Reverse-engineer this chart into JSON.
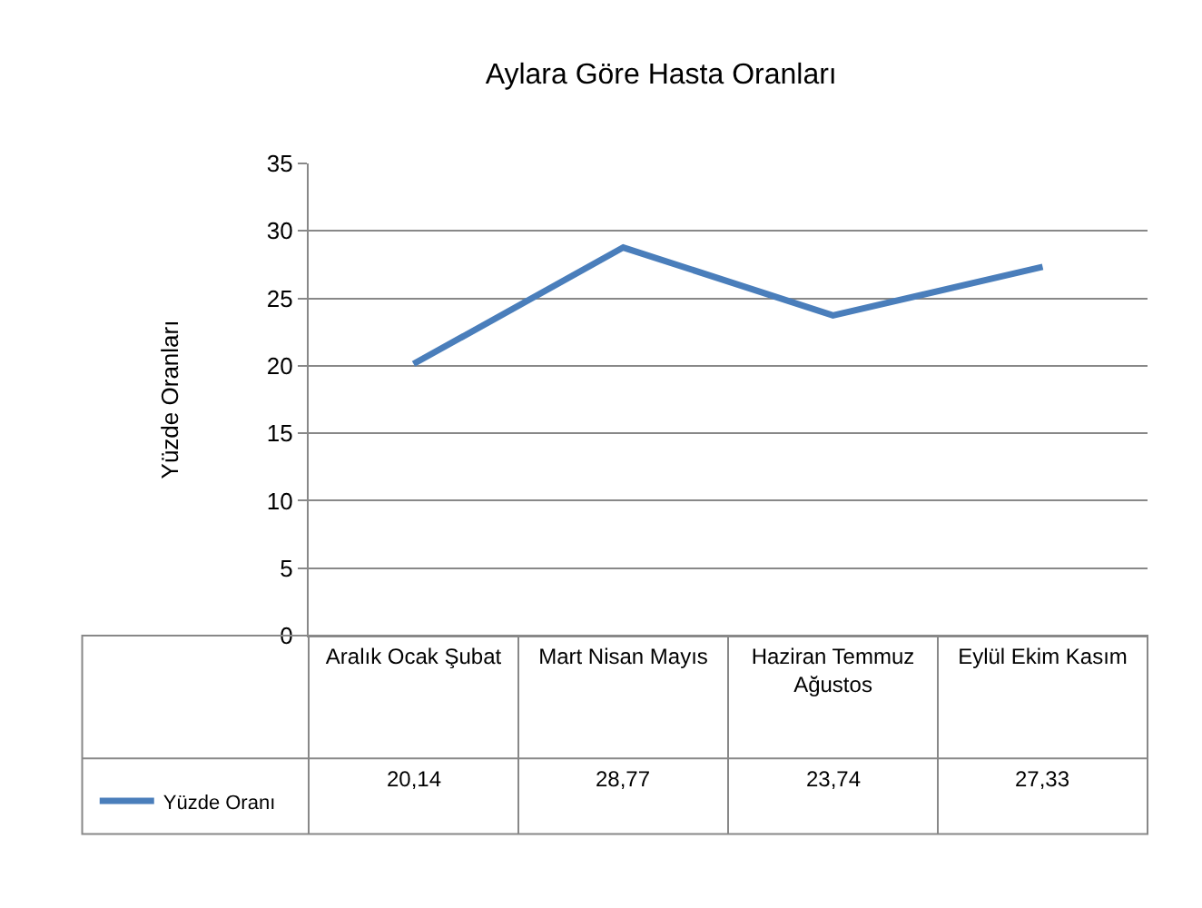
{
  "chart_data": {
    "type": "line",
    "title": "Aylara Göre Hasta Oranları",
    "ylabel": "Yüzde Oranları",
    "categories": [
      "Aralık Ocak Şubat",
      "Mart Nisan Mayıs",
      "Haziran Temmuz Ağustos",
      "Eylül Ekim Kasım"
    ],
    "series": [
      {
        "name": "Yüzde Oranı",
        "color": "#4a7ebb",
        "values": [
          20.14,
          28.77,
          23.74,
          27.33
        ],
        "value_labels": [
          "20,14",
          "28,77",
          "23,74",
          "27,33"
        ]
      }
    ],
    "ylim": [
      0,
      35
    ],
    "yticks": [
      0,
      5,
      10,
      15,
      20,
      25,
      30,
      35
    ],
    "grid": "y",
    "legend": "bottom left",
    "marker": "none",
    "line_style": "solid"
  }
}
